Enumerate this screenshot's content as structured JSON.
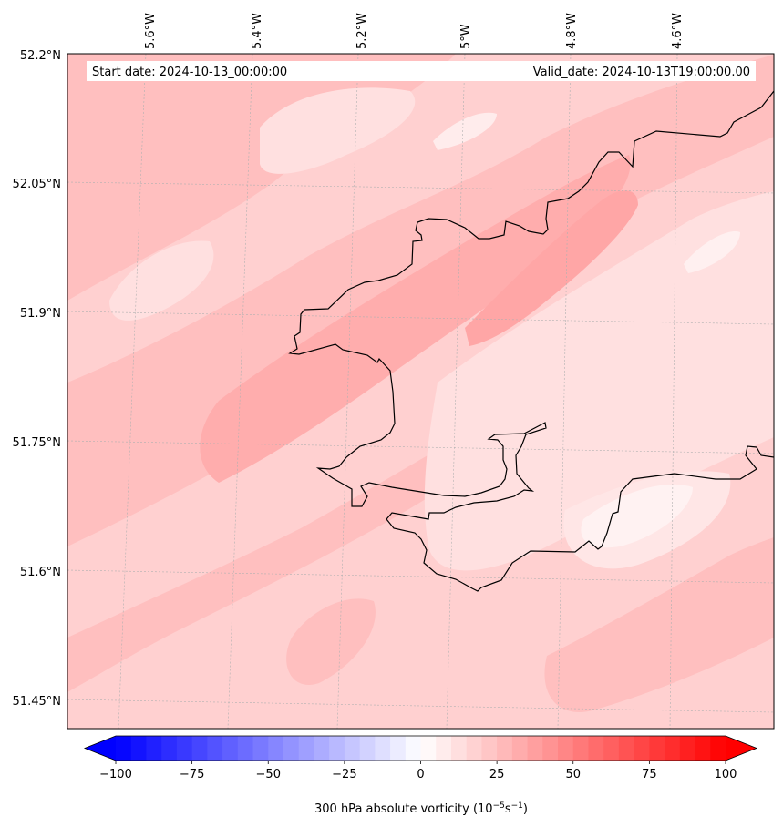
{
  "map": {
    "start_date_label": "Start date: 2024-10-13_00:00:00",
    "valid_date_label": "Valid_date: 2024-10-13T19:00:00.00",
    "lon_labels": [
      "5.6°W",
      "5.4°W",
      "5.2°W",
      "5°W",
      "4.8°W",
      "4.6°W"
    ],
    "lat_labels": [
      "52.2°N",
      "52.05°N",
      "51.9°N",
      "51.75°N",
      "51.6°N",
      "51.45°N"
    ],
    "field_name": "300 hPa absolute vorticity",
    "units": "10⁻⁵s⁻¹",
    "colormap": "bwr",
    "colors": {
      "land_outline": "#000000",
      "gridline": "#b0b0b0",
      "pink_base": "#ffd0d0",
      "pink_medium": "#ffbfbf",
      "pink_strong": "#ffadad",
      "pink_light": "#ffe2e2",
      "near_white": "#fff2f2"
    }
  },
  "colorbar": {
    "min": -100,
    "max": 100,
    "extend": "both",
    "tick_labels": [
      "−100",
      "−75",
      "−50",
      "−25",
      "0",
      "25",
      "50",
      "75",
      "100"
    ],
    "label_text": "300 hPa absolute vorticity (10",
    "label_exp1": "−5",
    "label_mid": "s",
    "label_exp2": "−1",
    "label_end": ")"
  }
}
